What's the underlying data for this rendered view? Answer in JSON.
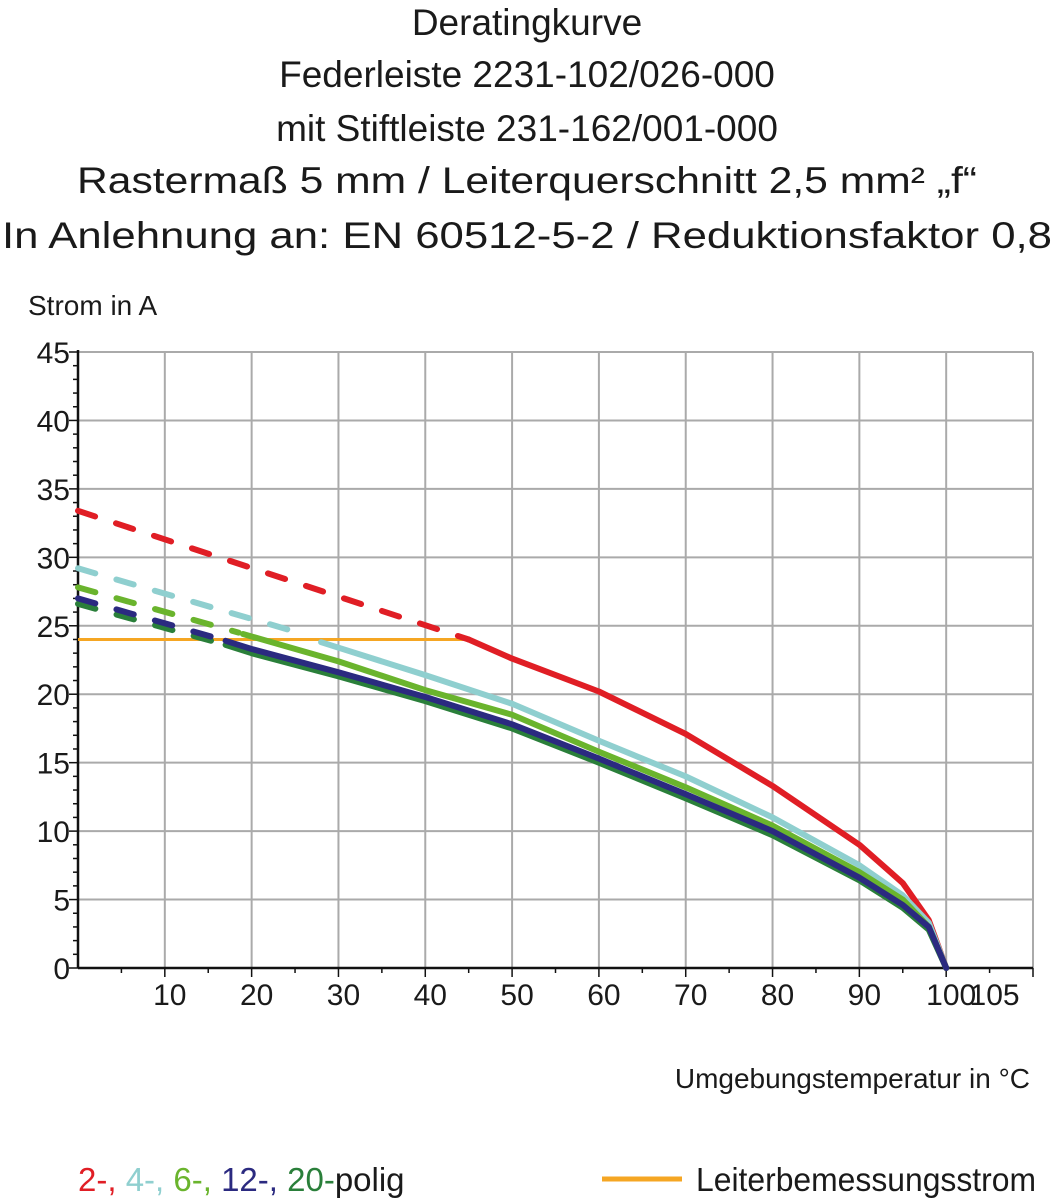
{
  "chart_data": {
    "type": "line",
    "title_lines": [
      "Deratingkurve",
      "Federleiste 2231-102/026-000",
      "mit Stiftleiste 231-162/001-000",
      "Rastermaß 5 mm / Leiterquerschnitt 2,5 mm² „f“",
      "In Anlehnung an: EN 60512-5-2 / Reduktionsfaktor 0,8"
    ],
    "ylabel": "Strom in A",
    "xlabel": "Umgebungstemperatur in °C",
    "xlim": [
      0,
      110
    ],
    "ylim": [
      0,
      45
    ],
    "x_ticks": [
      10,
      20,
      30,
      40,
      50,
      60,
      70,
      80,
      90,
      100,
      105
    ],
    "y_ticks": [
      0,
      5,
      10,
      15,
      20,
      25,
      30,
      35,
      40,
      45
    ],
    "grid": true,
    "legend_placement": "bottom",
    "series": [
      {
        "color": "#e01e25",
        "dashed": [
          [
            0,
            33.4
          ],
          [
            45,
            24.0
          ]
        ],
        "solid": [
          [
            45,
            24.0
          ],
          [
            50,
            22.6
          ],
          [
            60,
            20.2
          ],
          [
            70,
            17.1
          ],
          [
            80,
            13.3
          ],
          [
            90,
            9.0
          ],
          [
            95,
            6.2
          ],
          [
            98,
            3.5
          ],
          [
            100,
            0
          ]
        ]
      },
      {
        "color": "#8fcfcf",
        "dashed": [
          [
            0,
            29.2
          ],
          [
            26.5,
            24.3
          ]
        ],
        "solid": [
          [
            28,
            23.8
          ],
          [
            40,
            21.4
          ],
          [
            50,
            19.3
          ],
          [
            60,
            16.6
          ],
          [
            70,
            14.0
          ],
          [
            80,
            11.0
          ],
          [
            90,
            7.5
          ],
          [
            95,
            5.3
          ],
          [
            98,
            3.3
          ],
          [
            100,
            0
          ]
        ]
      },
      {
        "color": "#6ab42d",
        "dashed": [
          [
            0,
            27.8
          ],
          [
            18.5,
            24.5
          ]
        ],
        "solid": [
          [
            19,
            24.4
          ],
          [
            30,
            22.4
          ],
          [
            40,
            20.3
          ],
          [
            50,
            18.5
          ],
          [
            60,
            15.8
          ],
          [
            70,
            13.2
          ],
          [
            80,
            10.4
          ],
          [
            90,
            7.0
          ],
          [
            95,
            5.0
          ],
          [
            98,
            3.0
          ],
          [
            100,
            0
          ]
        ]
      },
      {
        "color": "#2a7f3a",
        "dashed": [
          [
            0,
            26.6
          ],
          [
            16.5,
            23.7
          ]
        ],
        "solid": [
          [
            17,
            23.6
          ],
          [
            20,
            23.0
          ],
          [
            30,
            21.3
          ],
          [
            40,
            19.5
          ],
          [
            50,
            17.5
          ],
          [
            60,
            15.0
          ],
          [
            70,
            12.4
          ],
          [
            80,
            9.7
          ],
          [
            90,
            6.4
          ],
          [
            95,
            4.4
          ],
          [
            98,
            2.8
          ],
          [
            100,
            0
          ]
        ]
      },
      {
        "color": "#2b2a80",
        "dashed": [
          [
            0,
            27.0
          ],
          [
            16.5,
            24.0
          ]
        ],
        "solid": [
          [
            17,
            23.9
          ],
          [
            20,
            23.3
          ],
          [
            30,
            21.6
          ],
          [
            40,
            19.8
          ],
          [
            50,
            17.8
          ],
          [
            60,
            15.3
          ],
          [
            70,
            12.7
          ],
          [
            80,
            10.0
          ],
          [
            90,
            6.6
          ],
          [
            95,
            4.6
          ],
          [
            98,
            3.0
          ],
          [
            100,
            0
          ]
        ]
      }
    ],
    "rated_current": {
      "name": "Leiterbemessungsstrom",
      "color": "#f5a623",
      "y": 24,
      "x": [
        0,
        45
      ]
    },
    "legend": {
      "poles": [
        {
          "text": "2-",
          "color": "#e01e25"
        },
        {
          "text": ", ",
          "color": "#e01e25"
        },
        {
          "text": "4-",
          "color": "#8fcfcf"
        },
        {
          "text": ", ",
          "color": "#8fcfcf"
        },
        {
          "text": "6-",
          "color": "#6ab42d"
        },
        {
          "text": ", ",
          "color": "#6ab42d"
        },
        {
          "text": "12-",
          "color": "#2b2a80"
        },
        {
          "text": ", ",
          "color": "#2b2a80"
        },
        {
          "text": "20-",
          "color": "#2a7f3a"
        },
        {
          "text": "polig",
          "color": "#1a1a1a"
        }
      ],
      "rated_label": "Leiterbemessungsstrom"
    }
  }
}
